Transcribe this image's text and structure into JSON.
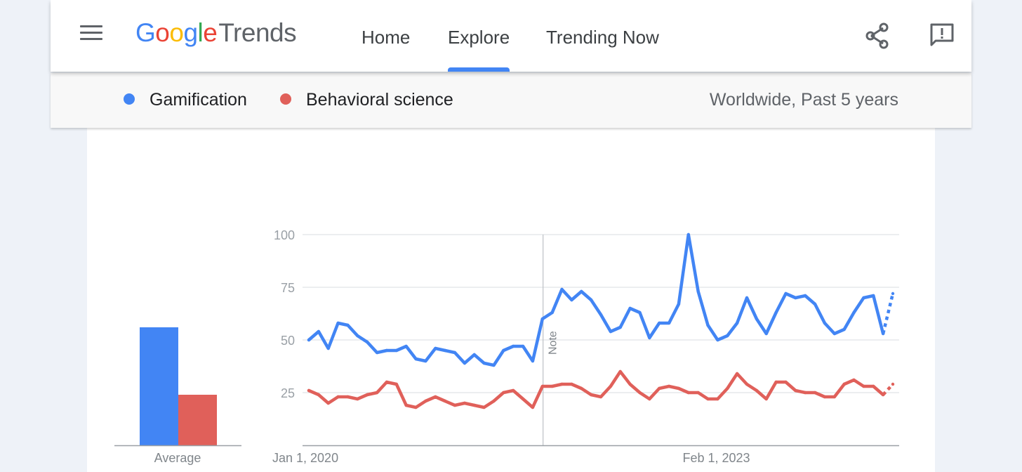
{
  "header": {
    "logo_google_letters": [
      {
        "ch": "G",
        "color": "#4285f4"
      },
      {
        "ch": "o",
        "color": "#ea4335"
      },
      {
        "ch": "o",
        "color": "#fbbc05"
      },
      {
        "ch": "g",
        "color": "#4285f4"
      },
      {
        "ch": "l",
        "color": "#34a853"
      },
      {
        "ch": "e",
        "color": "#ea4335"
      }
    ],
    "logo_suffix": "Trends",
    "nav": [
      {
        "label": "Home",
        "active": false
      },
      {
        "label": "Explore",
        "active": true
      },
      {
        "label": "Trending Now",
        "active": false
      }
    ],
    "icons": [
      "menu-icon",
      "share-icon",
      "feedback-icon"
    ],
    "accent_color": "#4285f4"
  },
  "comparison": {
    "terms": [
      {
        "label": "Gamification",
        "color": "#4285f4"
      },
      {
        "label": "Behavioral science",
        "color": "#e0605a"
      }
    ],
    "region_time": "Worldwide, Past 5 years"
  },
  "chart_data": [
    {
      "type": "bar",
      "categories": [
        "Average"
      ],
      "series": [
        {
          "name": "Gamification",
          "values": [
            56
          ],
          "color": "#4285f4"
        },
        {
          "name": "Behavioral science",
          "values": [
            24
          ],
          "color": "#e0605a"
        }
      ],
      "xlabel": "Average",
      "ylim": [
        0,
        100
      ]
    },
    {
      "type": "line",
      "ylim": [
        0,
        100
      ],
      "y_ticks": [
        25,
        50,
        75,
        100
      ],
      "x_tick_labels": [
        "Jan 1, 2020",
        "Feb 1, 2023"
      ],
      "x_tick_positions": [
        0,
        41
      ],
      "grid": true,
      "note_label": "Note",
      "note_position": 25,
      "partial_last_point": true,
      "series": [
        {
          "name": "Gamification",
          "color": "#4285f4",
          "values": [
            50,
            54,
            46,
            58,
            57,
            52,
            49,
            44,
            45,
            45,
            47,
            41,
            40,
            46,
            45,
            44,
            39,
            43,
            39,
            38,
            45,
            47,
            47,
            40,
            60,
            63,
            74,
            69,
            73,
            69,
            62,
            54,
            56,
            65,
            63,
            51,
            58,
            58,
            67,
            100,
            73,
            57,
            50,
            52,
            58,
            70,
            60,
            53,
            63,
            72,
            70,
            71,
            67,
            58,
            53,
            55,
            63,
            70,
            71,
            53,
            72
          ]
        },
        {
          "name": "Behavioral science",
          "color": "#e0605a",
          "values": [
            26,
            24,
            20,
            23,
            23,
            22,
            24,
            25,
            30,
            29,
            19,
            18,
            21,
            23,
            21,
            19,
            20,
            19,
            18,
            21,
            25,
            26,
            22,
            18,
            28,
            28,
            29,
            29,
            27,
            24,
            23,
            28,
            35,
            29,
            25,
            22,
            27,
            28,
            27,
            25,
            25,
            22,
            22,
            27,
            34,
            29,
            26,
            22,
            30,
            30,
            26,
            25,
            25,
            23,
            23,
            29,
            31,
            28,
            28,
            24,
            29
          ]
        }
      ]
    }
  ]
}
